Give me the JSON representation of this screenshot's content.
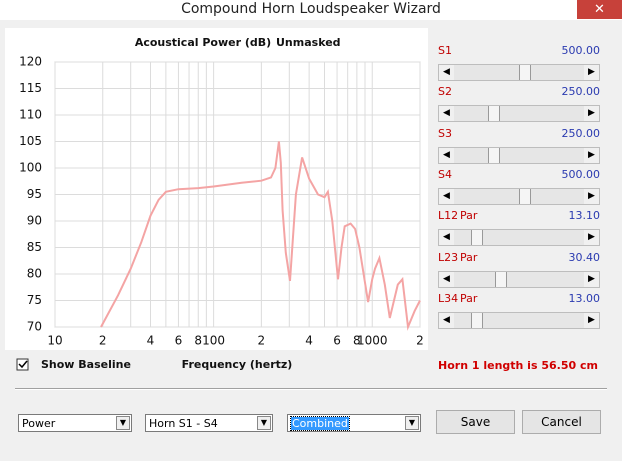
{
  "window": {
    "title": "Compound Horn Loudspeaker Wizard"
  },
  "chart_data": {
    "type": "line",
    "title": "Acoustical Power (dB)",
    "subtitle": "Unmasked",
    "x_label": "Frequency (hertz)",
    "xscale": "log",
    "xlim": [
      10,
      2000
    ],
    "ylim": [
      70,
      120
    ],
    "xticks": [
      {
        "value": 10,
        "label": "10"
      },
      {
        "value": 20,
        "label": "2"
      },
      {
        "value": 40,
        "label": "4"
      },
      {
        "value": 60,
        "label": "6"
      },
      {
        "value": 80,
        "label": "8"
      },
      {
        "value": 100,
        "label": "100"
      },
      {
        "value": 200,
        "label": "2"
      },
      {
        "value": 400,
        "label": "4"
      },
      {
        "value": 600,
        "label": "6"
      },
      {
        "value": 800,
        "label": "8"
      },
      {
        "value": 1000,
        "label": "1000"
      },
      {
        "value": 2000,
        "label": "2"
      }
    ],
    "xgrid_minor": [
      30,
      50,
      70,
      90,
      300,
      500,
      700,
      900
    ],
    "yticks": [
      70,
      75,
      80,
      85,
      90,
      95,
      100,
      105,
      110,
      115,
      120
    ],
    "grid": true,
    "series": [
      {
        "color": "#f4a4a4",
        "x": [
          19.5,
          25,
          30,
          35,
          40,
          45,
          50,
          60,
          80,
          100,
          150,
          200,
          230,
          245,
          258,
          265,
          272,
          285,
          303,
          330,
          361,
          400,
          455,
          500,
          525,
          560,
          608,
          640,
          670,
          730,
          780,
          830,
          942,
          1000,
          1040,
          1110,
          1200,
          1290,
          1450,
          1550,
          1680,
          1850,
          2000
        ],
        "values": [
          70,
          76,
          81,
          86,
          91,
          94,
          95.5,
          96,
          96.2,
          96.5,
          97.2,
          97.6,
          98.2,
          100,
          105,
          101,
          92,
          84,
          78.7,
          95,
          102,
          98,
          95,
          94.5,
          95.5,
          90,
          79,
          85,
          89,
          89.5,
          88.5,
          85,
          74.7,
          79,
          81,
          83,
          78,
          71.7,
          78,
          79,
          70,
          73,
          75
        ]
      }
    ]
  },
  "sliders": [
    {
      "label": "S1",
      "value": "500.00"
    },
    {
      "label": "S2",
      "value": "250.00"
    },
    {
      "label": "S3",
      "value": "250.00"
    },
    {
      "label": "S4",
      "value": "500.00"
    },
    {
      "label": "L12",
      "mode": "Par",
      "value": "13.10"
    },
    {
      "label": "L23",
      "mode": "Par",
      "value": "30.40"
    },
    {
      "label": "L34",
      "mode": "Par",
      "value": "13.00"
    }
  ],
  "checkbox": {
    "label": "Show Baseline"
  },
  "status": "Horn 1 length is 56.50 cm",
  "dropdowns": [
    "Power",
    "Horn S1 - S4",
    "Combined"
  ],
  "buttons": [
    "Save",
    "Cancel"
  ]
}
